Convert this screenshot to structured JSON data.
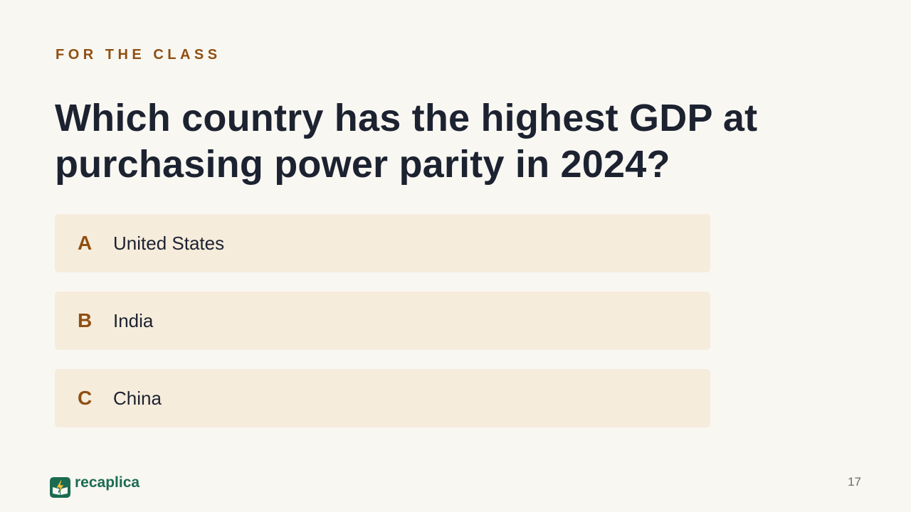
{
  "slide": {
    "eyebrow": "FOR THE CLASS",
    "question": "Which country has the highest GDP at purchasing power parity in 2024?",
    "options": [
      {
        "letter": "A",
        "text": "United States"
      },
      {
        "letter": "B",
        "text": "India"
      },
      {
        "letter": "C",
        "text": "China"
      }
    ],
    "page_number": "17"
  },
  "brand": {
    "name": "recaplica",
    "logo_icon": "lightning-book-icon"
  },
  "colors": {
    "background": "#f9f7f2",
    "accent": "#8f4f12",
    "option_background": "#f6ecdc",
    "heading": "#1c2230",
    "brand_green": "#1a6b52",
    "logo_yellow": "#f2c233"
  }
}
